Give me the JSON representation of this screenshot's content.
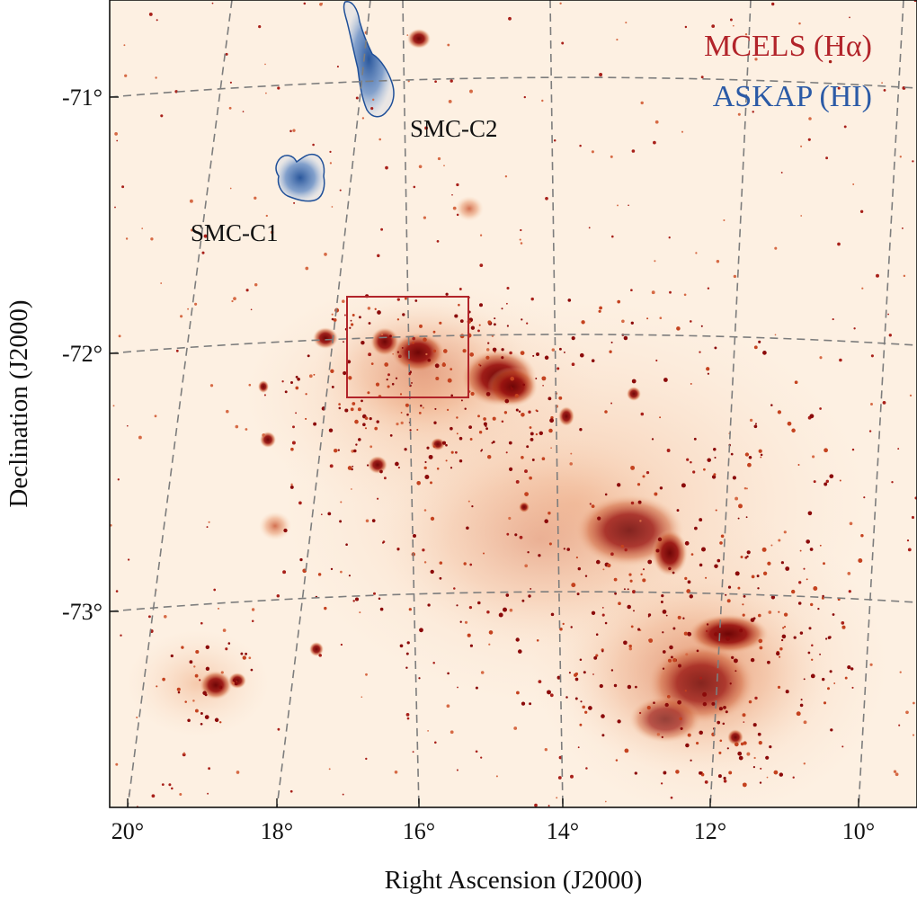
{
  "figure": {
    "xlabel": "Right Ascension (J2000)",
    "ylabel": "Declination (J2000)",
    "ra_ticks": [
      "20°",
      "18°",
      "16°",
      "14°",
      "12°",
      "10°"
    ],
    "dec_ticks": [
      "-71°",
      "-72°",
      "-73°"
    ]
  },
  "legend": {
    "halpha": "MCELS (Hα)",
    "hi": "ASKAP (HI)",
    "halpha_color": "#b2242a",
    "hi_color": "#2b5aa6"
  },
  "annotations": {
    "c1": "SMC-C1",
    "c2": "SMC-C2"
  },
  "colors": {
    "background": "#fdf0e2",
    "emission_dark": "#8b0a0a",
    "emission_mid": "#c4421f",
    "emission_faint": "#f0b088",
    "grid": "#7d7d7d",
    "box": "#b2242a"
  }
}
